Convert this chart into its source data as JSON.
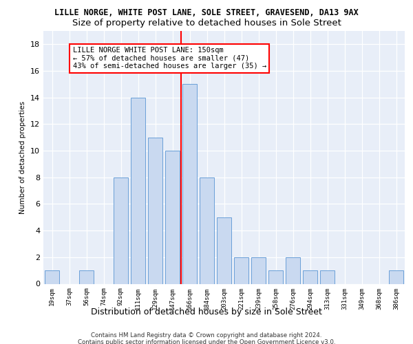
{
  "title": "LILLE NORGE, WHITE POST LANE, SOLE STREET, GRAVESEND, DA13 9AX",
  "subtitle": "Size of property relative to detached houses in Sole Street",
  "xlabel": "Distribution of detached houses by size in Sole Street",
  "ylabel": "Number of detached properties",
  "bar_labels": [
    "19sqm",
    "37sqm",
    "56sqm",
    "74sqm",
    "92sqm",
    "111sqm",
    "129sqm",
    "147sqm",
    "166sqm",
    "184sqm",
    "203sqm",
    "221sqm",
    "239sqm",
    "258sqm",
    "276sqm",
    "294sqm",
    "313sqm",
    "331sqm",
    "349sqm",
    "368sqm",
    "386sqm"
  ],
  "bar_values": [
    1,
    0,
    1,
    0,
    8,
    14,
    11,
    10,
    15,
    8,
    5,
    2,
    2,
    1,
    2,
    1,
    1,
    0,
    0,
    0,
    1
  ],
  "bar_color": "#c9d9f0",
  "bar_edge_color": "#6a9fd8",
  "highlight_index": 7.5,
  "annotation_text": "LILLE NORGE WHITE POST LANE: 150sqm\n← 57% of detached houses are smaller (47)\n43% of semi-detached houses are larger (35) →",
  "annotation_box_color": "white",
  "annotation_box_edge": "red",
  "vline_color": "red",
  "ylim": [
    0,
    19
  ],
  "yticks": [
    0,
    2,
    4,
    6,
    8,
    10,
    12,
    14,
    16,
    18
  ],
  "footer": "Contains HM Land Registry data © Crown copyright and database right 2024.\nContains public sector information licensed under the Open Government Licence v3.0.",
  "bg_color": "#e8eef8",
  "grid_color": "#ffffff",
  "title_fontsize": 8.5,
  "subtitle_fontsize": 9.5
}
